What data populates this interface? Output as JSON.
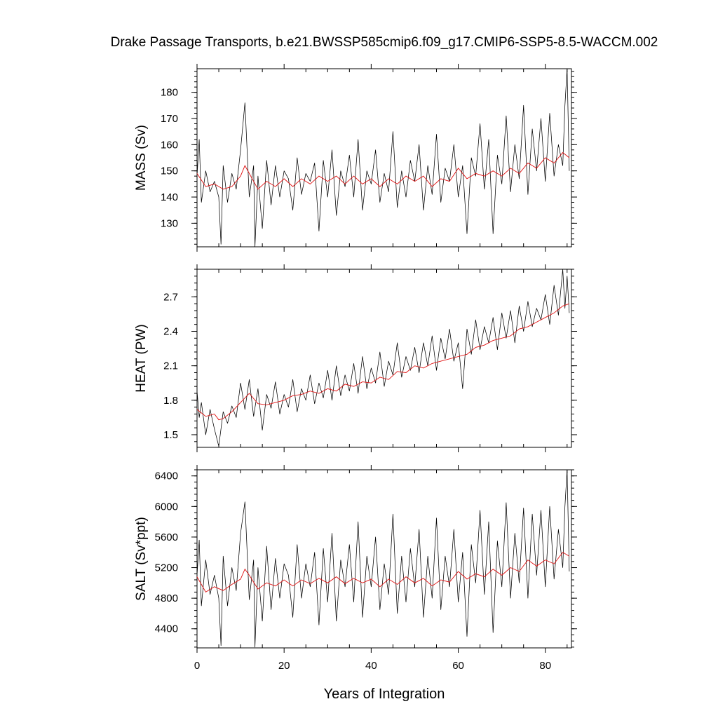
{
  "title": "Drake Passage Transports, b.e21.BWSSP585cmip6.f09_g17.CMIP6-SSP5-8.5-WACCM.002",
  "xlabel": "Years of Integration",
  "colors": {
    "raw": "#000000",
    "smoothed": "#e01010"
  },
  "chart_data": [
    {
      "type": "line",
      "ylabel": "MASS (Sv)",
      "xlim": [
        0,
        86
      ],
      "ylim": [
        121,
        189
      ],
      "xticks": [
        0,
        20,
        40,
        60,
        80
      ],
      "yticks": [
        130,
        140,
        150,
        160,
        170,
        180
      ],
      "ytick_labels": [
        "130",
        "140",
        "150",
        "160",
        "170",
        "180"
      ],
      "series": [
        {
          "style": "monthly",
          "color": "#000000",
          "x": [
            0,
            0.5,
            1,
            2,
            3,
            4,
            5,
            5.5,
            6,
            7,
            8,
            9,
            10,
            11,
            12,
            13,
            13.3,
            14,
            15,
            16,
            17,
            18,
            19,
            20,
            21,
            22,
            23,
            24,
            25,
            26,
            27,
            28,
            29,
            30,
            31,
            32,
            33,
            34,
            35,
            36,
            37,
            38,
            39,
            40,
            41,
            42,
            43,
            44,
            45,
            46,
            47,
            48,
            49,
            50,
            51,
            52,
            53,
            54,
            55,
            56,
            57,
            58,
            59,
            60,
            61,
            62,
            63,
            64,
            65,
            66,
            67,
            68,
            69,
            70,
            71,
            72,
            73,
            74,
            75,
            76,
            77,
            78,
            79,
            80,
            81,
            82,
            83,
            84,
            84.5,
            85,
            85.5
          ],
          "y": [
            148,
            162,
            138,
            150,
            142,
            146,
            140,
            122,
            152,
            138,
            149,
            143,
            158,
            176,
            140,
            152,
            121,
            148,
            128,
            154,
            137,
            152,
            140,
            150,
            147,
            135,
            155,
            141,
            149,
            146,
            153,
            127,
            154,
            140,
            158,
            133,
            150,
            144,
            156,
            140,
            162,
            135,
            150,
            145,
            158,
            138,
            149,
            142,
            165,
            136,
            150,
            140,
            154,
            146,
            160,
            135,
            152,
            141,
            164,
            138,
            151,
            146,
            160,
            140,
            152,
            126,
            155,
            148,
            168,
            143,
            162,
            126,
            156,
            145,
            171,
            142,
            160,
            147,
            175,
            141,
            166,
            150,
            170,
            146,
            172,
            148,
            160,
            152,
            175,
            189,
            150
          ]
        },
        {
          "style": "smoothed",
          "color": "#e01010",
          "x": [
            0,
            2,
            4,
            6,
            8,
            10,
            11,
            12,
            14,
            16,
            18,
            20,
            22,
            24,
            26,
            28,
            30,
            32,
            34,
            36,
            38,
            40,
            42,
            44,
            46,
            48,
            50,
            52,
            54,
            56,
            58,
            60,
            62,
            64,
            66,
            68,
            70,
            72,
            74,
            76,
            78,
            80,
            82,
            84,
            85.5
          ],
          "y": [
            149,
            144,
            145,
            143,
            144,
            148,
            152,
            149,
            143,
            146,
            144,
            147,
            144,
            147,
            145,
            148,
            146,
            148,
            145,
            148,
            145,
            147,
            144,
            147,
            145,
            148,
            146,
            148,
            144,
            147,
            146,
            151,
            147,
            149,
            148,
            150,
            148,
            151,
            149,
            153,
            151,
            155,
            153,
            157,
            155
          ]
        }
      ]
    },
    {
      "type": "line",
      "ylabel": "HEAT (PW)",
      "xlim": [
        0,
        86
      ],
      "ylim": [
        1.39,
        2.94
      ],
      "xticks": [
        0,
        20,
        40,
        60,
        80
      ],
      "yticks": [
        1.5,
        1.8,
        2.1,
        2.4,
        2.7
      ],
      "ytick_labels": [
        "1.5",
        "1.8",
        "2.1",
        "2.4",
        "2.7"
      ],
      "series": [
        {
          "style": "monthly",
          "color": "#000000",
          "x": [
            0,
            0.5,
            1,
            2,
            3,
            4,
            5,
            6,
            7,
            8,
            9,
            10,
            11,
            12,
            13,
            14,
            15,
            16,
            17,
            18,
            19,
            20,
            21,
            22,
            23,
            24,
            25,
            26,
            27,
            28,
            29,
            30,
            31,
            32,
            33,
            34,
            35,
            36,
            37,
            38,
            39,
            40,
            41,
            42,
            43,
            44,
            45,
            46,
            47,
            48,
            49,
            50,
            51,
            52,
            53,
            54,
            55,
            56,
            57,
            58,
            59,
            60,
            61,
            62,
            63,
            64,
            65,
            66,
            67,
            68,
            69,
            70,
            71,
            72,
            73,
            74,
            75,
            76,
            77,
            78,
            79,
            80,
            81,
            82,
            83,
            84,
            84.5,
            85,
            85.5
          ],
          "y": [
            1.88,
            1.65,
            1.78,
            1.5,
            1.72,
            1.55,
            1.4,
            1.7,
            1.6,
            1.75,
            1.65,
            1.95,
            1.72,
            1.98,
            1.66,
            1.9,
            1.54,
            1.85,
            1.73,
            1.96,
            1.68,
            1.85,
            1.74,
            1.98,
            1.7,
            1.9,
            1.8,
            2.02,
            1.77,
            1.95,
            1.82,
            2.06,
            1.8,
            2.1,
            1.84,
            2.02,
            1.88,
            2.12,
            1.86,
            2.18,
            1.9,
            2.08,
            1.95,
            2.22,
            1.92,
            2.14,
            2.02,
            2.3,
            2.0,
            2.18,
            2.06,
            2.26,
            2.04,
            2.3,
            2.1,
            2.36,
            2.06,
            2.34,
            2.16,
            2.42,
            2.14,
            2.3,
            1.9,
            2.42,
            2.2,
            2.5,
            2.24,
            2.44,
            2.3,
            2.52,
            2.24,
            2.56,
            2.34,
            2.58,
            2.3,
            2.62,
            2.4,
            2.66,
            2.44,
            2.6,
            2.5,
            2.72,
            2.46,
            2.8,
            2.54,
            2.94,
            2.6,
            2.88,
            2.56
          ]
        },
        {
          "style": "smoothed",
          "color": "#e01010",
          "x": [
            0,
            2,
            4,
            5,
            6,
            8,
            10,
            12,
            14,
            16,
            18,
            20,
            22,
            24,
            26,
            28,
            30,
            32,
            34,
            36,
            38,
            40,
            42,
            44,
            46,
            48,
            50,
            52,
            54,
            56,
            58,
            60,
            62,
            64,
            66,
            68,
            70,
            72,
            74,
            76,
            78,
            80,
            82,
            84,
            85.5
          ],
          "y": [
            1.72,
            1.66,
            1.68,
            1.63,
            1.64,
            1.7,
            1.78,
            1.86,
            1.77,
            1.76,
            1.78,
            1.8,
            1.84,
            1.85,
            1.88,
            1.86,
            1.9,
            1.88,
            1.94,
            1.92,
            1.96,
            1.95,
            2.0,
            1.98,
            2.05,
            2.04,
            2.1,
            2.08,
            2.12,
            2.14,
            2.16,
            2.18,
            2.2,
            2.26,
            2.28,
            2.32,
            2.34,
            2.36,
            2.42,
            2.44,
            2.48,
            2.52,
            2.56,
            2.62,
            2.64
          ]
        }
      ]
    },
    {
      "type": "line",
      "ylabel": "SALT (Sv*ppt)",
      "xlim": [
        0,
        86
      ],
      "ylim": [
        4150,
        6480
      ],
      "xticks": [
        0,
        20,
        40,
        60,
        80
      ],
      "yticks": [
        4400,
        4800,
        5200,
        5600,
        6000,
        6400
      ],
      "ytick_labels": [
        "4400",
        "4800",
        "5200",
        "5600",
        "6000",
        "6400"
      ],
      "series": [
        {
          "style": "monthly",
          "color": "#000000",
          "x": [
            0,
            0.5,
            1,
            2,
            3,
            4,
            5,
            5.5,
            6,
            7,
            8,
            9,
            10,
            11,
            12,
            13,
            13.3,
            14,
            15,
            16,
            17,
            18,
            19,
            20,
            21,
            22,
            23,
            24,
            25,
            26,
            27,
            28,
            29,
            30,
            31,
            32,
            33,
            34,
            35,
            36,
            37,
            38,
            39,
            40,
            41,
            42,
            43,
            44,
            45,
            46,
            47,
            48,
            49,
            50,
            51,
            52,
            53,
            54,
            55,
            56,
            57,
            58,
            59,
            60,
            61,
            62,
            63,
            64,
            65,
            66,
            67,
            68,
            69,
            70,
            71,
            72,
            73,
            74,
            75,
            76,
            77,
            78,
            79,
            80,
            81,
            82,
            83,
            84,
            84.5,
            85,
            85.5
          ],
          "y": [
            5100,
            5560,
            4700,
            5300,
            4850,
            5100,
            4800,
            4180,
            5350,
            4700,
            5200,
            4900,
            5650,
            6060,
            4780,
            5300,
            4160,
            5200,
            4500,
            5480,
            4650,
            5320,
            4800,
            5250,
            5100,
            4550,
            5500,
            4800,
            5250,
            4950,
            5400,
            4450,
            5450,
            4750,
            5650,
            4500,
            5300,
            4950,
            5500,
            4750,
            5800,
            4550,
            5350,
            4950,
            5600,
            4650,
            5250,
            4850,
            5900,
            4600,
            5350,
            4750,
            5450,
            4950,
            5700,
            4550,
            5350,
            4800,
            5850,
            4650,
            5350,
            4950,
            5700,
            4750,
            5400,
            4300,
            5500,
            5000,
            5950,
            4850,
            5800,
            4350,
            5550,
            4950,
            6050,
            4800,
            5650,
            5000,
            5980,
            4800,
            5900,
            5100,
            5950,
            4950,
            6000,
            5050,
            5700,
            5200,
            6000,
            6480,
            5150
          ]
        },
        {
          "style": "smoothed",
          "color": "#e01010",
          "x": [
            0,
            2,
            4,
            6,
            8,
            10,
            11,
            12,
            14,
            16,
            18,
            20,
            22,
            24,
            26,
            28,
            30,
            32,
            34,
            36,
            38,
            40,
            42,
            44,
            46,
            48,
            50,
            52,
            54,
            56,
            58,
            60,
            62,
            64,
            66,
            68,
            70,
            72,
            74,
            76,
            78,
            80,
            82,
            84,
            85.5
          ],
          "y": [
            5080,
            4880,
            4950,
            4900,
            4980,
            5050,
            5180,
            5100,
            4920,
            5000,
            4960,
            5040,
            4960,
            5040,
            4990,
            5060,
            5000,
            5080,
            4990,
            5060,
            5000,
            5050,
            4950,
            5050,
            4980,
            5080,
            5000,
            5060,
            4960,
            5040,
            5010,
            5150,
            5050,
            5120,
            5080,
            5180,
            5100,
            5200,
            5150,
            5300,
            5220,
            5300,
            5250,
            5400,
            5350
          ]
        }
      ]
    }
  ]
}
